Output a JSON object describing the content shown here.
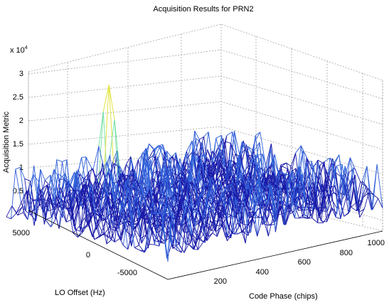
{
  "chart_data": {
    "type": "mesh3d",
    "title": "Acquisition Results for PRN2",
    "xlabel": "Code Phase (chips)",
    "ylabel": "LO Offset (Hz)",
    "zlabel": "Acquisition Metric",
    "z_exponent_label": "x 10",
    "z_exponent_power": "4",
    "x_ticks": [
      "200",
      "400",
      "600",
      "800",
      "1000"
    ],
    "y_ticks": [
      "5000",
      "0",
      "-5000"
    ],
    "z_ticks": [
      "0.5",
      "1",
      "1.5",
      "2",
      "2.5",
      "3"
    ],
    "xlim": [
      0,
      1023
    ],
    "ylim": [
      -7000,
      7000
    ],
    "zlim": [
      0,
      30000
    ],
    "grid": true,
    "peak": {
      "code_phase": 430,
      "lo_offset": 6000,
      "metric": 26500
    },
    "noise_floor": {
      "min": 3000,
      "max": 12000
    },
    "colormap": "jet"
  }
}
